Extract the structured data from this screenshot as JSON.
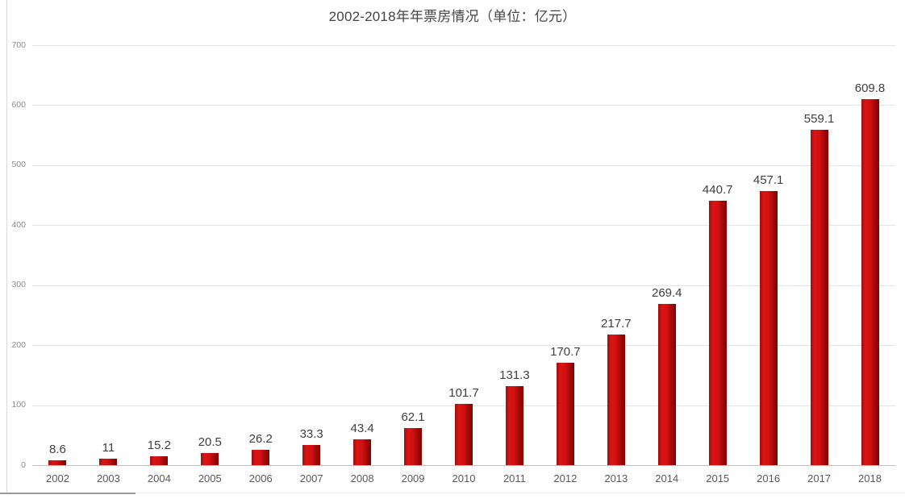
{
  "chart_data": {
    "type": "bar",
    "title": "2002-2018年年票房情况（单位：亿元）",
    "categories": [
      "2002",
      "2003",
      "2004",
      "2005",
      "2006",
      "2007",
      "2008",
      "2009",
      "2010",
      "2011",
      "2012",
      "2013",
      "2014",
      "2015",
      "2016",
      "2017",
      "2018"
    ],
    "values": [
      8.6,
      11,
      15.2,
      20.5,
      26.2,
      33.3,
      43.4,
      62.1,
      101.7,
      131.3,
      170.7,
      217.7,
      269.4,
      440.7,
      457.1,
      559.1,
      609.8
    ],
    "value_labels": [
      "8.6",
      "11",
      "15.2",
      "20.5",
      "26.2",
      "33.3",
      "43.4",
      "62.1",
      "101.7",
      "131.3",
      "170.7",
      "217.7",
      "269.4",
      "440.7",
      "457.1",
      "559.1",
      "609.8"
    ],
    "unit": "亿元",
    "xlabel": "",
    "ylabel": "",
    "ylim": [
      0,
      700
    ],
    "yticks": [
      0,
      100,
      200,
      300,
      400,
      500,
      600,
      700
    ],
    "grid": true,
    "legend": false,
    "bar_color": {
      "gradient_left": "#a80b0b",
      "gradient_bright": "#d91414",
      "gradient_right": "#7a0303"
    }
  },
  "colors": {
    "background": "#ffffff",
    "title_text": "#444444",
    "data_label_text": "#3f3f3f",
    "x_tick_text": "#595959",
    "y_tick_text": "#8c8c8c",
    "gridline": "#e4e4e4",
    "axis_line": "#c0c0c0",
    "window_left_border": "#d9d9d9",
    "window_bottom_line": "#f0f0f0",
    "scrollbar_thumb": "#999999"
  }
}
